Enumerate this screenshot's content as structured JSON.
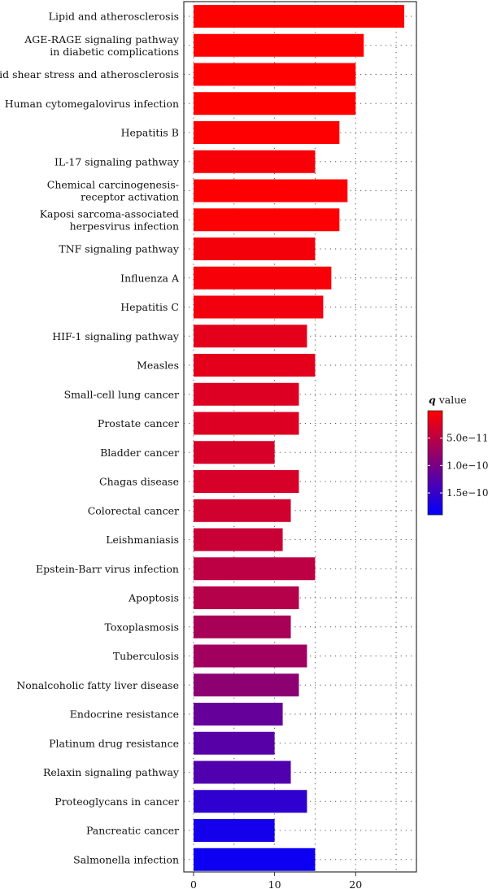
{
  "chart_data": {
    "type": "bar",
    "orientation": "horizontal",
    "categories": [
      "Lipid and atherosclerosis",
      "AGE-RAGE signaling pathway\nin diabetic complications",
      "Fluid shear stress and atherosclerosis",
      "Human cytomegalovirus infection",
      "Hepatitis B",
      "IL-17 signaling pathway",
      "Chemical carcinogenesis-\nreceptor activation",
      "Kaposi sarcoma-associated\nherpesvirus infection",
      "TNF signaling pathway",
      "Influenza A",
      "Hepatitis C",
      "HIF-1 signaling pathway",
      "Measles",
      "Small-cell lung cancer",
      "Prostate cancer",
      "Bladder cancer",
      "Chagas disease",
      "Colorectal cancer",
      "Leishmaniasis",
      "Epstein-Barr virus infection",
      "Apoptosis",
      "Toxoplasmosis",
      "Tuberculosis",
      "Nonalcoholic fatty liver disease",
      "Endocrine resistance",
      "Platinum drug resistance",
      "Relaxin signaling pathway",
      "Proteoglycans in cancer",
      "Pancreatic cancer",
      "Salmonella infection"
    ],
    "values": [
      26,
      21,
      20,
      20,
      18,
      15,
      19,
      18,
      15,
      17,
      16,
      14,
      15,
      13,
      13,
      10,
      13,
      12,
      11,
      15,
      13,
      12,
      14,
      13,
      11,
      10,
      12,
      14,
      10,
      15
    ],
    "q_values": [
      1e-17,
      1e-14,
      1e-13,
      1e-13,
      1e-12,
      5e-12,
      1e-12,
      2e-12,
      8e-12,
      5e-12,
      1e-11,
      2e-11,
      2e-11,
      2.5e-11,
      2.5e-11,
      3e-11,
      3e-11,
      3.5e-11,
      4e-11,
      5e-11,
      5.5e-11,
      6.5e-11,
      7e-11,
      8.5e-11,
      1.15e-10,
      1.25e-10,
      1.3e-10,
      1.55e-10,
      1.75e-10,
      1.8e-10
    ],
    "xlim": [
      -1.2,
      27.5
    ],
    "x_ticks": [
      {
        "value": 0,
        "label": "0"
      },
      {
        "value": 10,
        "label": "10"
      },
      {
        "value": 20,
        "label": "20"
      }
    ],
    "grid": "dotted",
    "colorbar": {
      "title_symbol": "q",
      "title_rest": " value",
      "q_min": 0,
      "q_max": 1.9e-10,
      "ticks": [
        {
          "value": 5e-11,
          "label": "5.0e−11"
        },
        {
          "value": 1e-10,
          "label": "1.0e−10"
        },
        {
          "value": 1.5e-10,
          "label": "1.5e−10"
        }
      ],
      "color_low": "#FF0000",
      "color_high": "#0000FF"
    },
    "legend_position": "right"
  }
}
